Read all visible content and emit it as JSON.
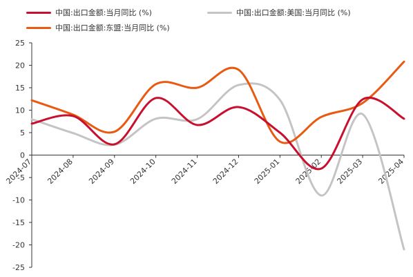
{
  "chart_data": {
    "type": "line",
    "x": [
      "2024-07",
      "2024-08",
      "2024-09",
      "2024-10",
      "2024-11",
      "2024-12",
      "2025-01",
      "2025-02",
      "2025-03",
      "2025-04"
    ],
    "series": [
      {
        "name": "中国:出口金额:当月同比 (%)",
        "color": "#c8102e",
        "values": [
          7,
          8.7,
          2.4,
          12.7,
          6.7,
          10.7,
          5.0,
          -3.0,
          12.4,
          8.1
        ]
      },
      {
        "name": "中国:出口金额:美国:当月同比 (%)",
        "color": "#c4c4c4",
        "values": [
          8.0,
          4.9,
          2.3,
          8.1,
          8.0,
          15.6,
          12.3,
          -9.0,
          9.1,
          -21.0
        ]
      },
      {
        "name": "中国:出口金额:东盟:当月同比 (%)",
        "color": "#e85a12",
        "values": [
          12.2,
          9.0,
          5.2,
          15.8,
          15.0,
          19.0,
          3.0,
          8.5,
          11.6,
          20.8
        ]
      }
    ],
    "y_ticks": [
      25,
      20,
      15,
      10,
      5,
      0,
      -5,
      -10,
      -15,
      -20,
      -25
    ],
    "ylim": [
      -25,
      25
    ],
    "legend_position": "top-left"
  }
}
